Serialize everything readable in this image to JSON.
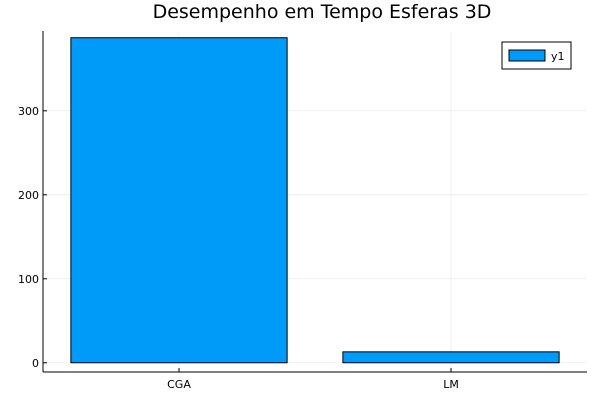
{
  "chart_data": {
    "type": "bar",
    "title": "Desempenho em Tempo Esferas 3D",
    "xlabel": "",
    "ylabel": "",
    "categories": [
      "CGA",
      "LM"
    ],
    "series": [
      {
        "name": "y1",
        "values": [
          387,
          13
        ]
      }
    ],
    "ylim": [
      -11,
      395
    ],
    "yticks": [
      0,
      100,
      200,
      300
    ],
    "grid": true,
    "legend_position": "top-right",
    "colors": {
      "bar": "#009AF9",
      "axis": "#000000",
      "background": "#FFFFFF"
    }
  }
}
